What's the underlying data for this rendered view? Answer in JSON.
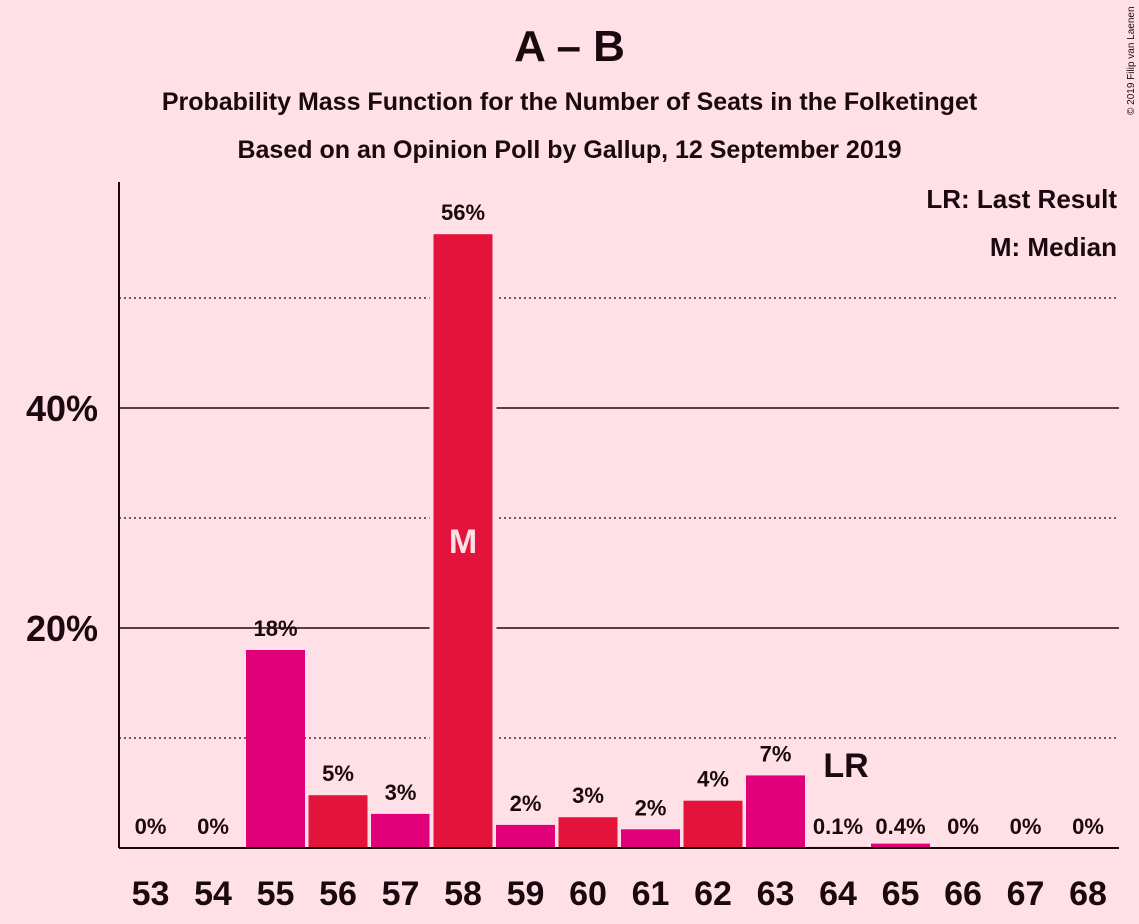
{
  "title": "A – B",
  "subtitle": "Probability Mass Function for the Number of Seats in the Folketinget",
  "subtitle2": "Based on an Opinion Poll by Gallup, 12 September 2019",
  "copyright": "© 2019 Filip van Laenen",
  "legend": {
    "last_result": "LR: Last Result",
    "median": "M: Median"
  },
  "colors": {
    "background": "#ffe0e6",
    "bar_magenta": "#e2007a",
    "bar_red": "#e3133b",
    "text": "#1a0a0f"
  },
  "chart_data": {
    "type": "bar",
    "categories": [
      "53",
      "54",
      "55",
      "56",
      "57",
      "58",
      "59",
      "60",
      "61",
      "62",
      "63",
      "64",
      "65",
      "66",
      "67",
      "68"
    ],
    "values": [
      0,
      0,
      18,
      4.8,
      3.1,
      55.8,
      2.1,
      2.8,
      1.7,
      4.3,
      6.6,
      0.1,
      0.4,
      0,
      0,
      0
    ],
    "labels": [
      "0%",
      "0%",
      "18%",
      "5%",
      "3%",
      "56%",
      "2%",
      "3%",
      "2%",
      "4%",
      "7%",
      "0.1%",
      "0.4%",
      "0%",
      "0%",
      "0%"
    ],
    "bar_colors": [
      "#e2007a",
      "#e3133b",
      "#e2007a",
      "#e3133b",
      "#e2007a",
      "#e3133b",
      "#e2007a",
      "#e3133b",
      "#e2007a",
      "#e3133b",
      "#e2007a",
      "#e3133b",
      "#e2007a",
      "#e3133b",
      "#e2007a",
      "#e3133b"
    ],
    "y_ticks": [
      {
        "value": 20,
        "label": "20%"
      },
      {
        "value": 40,
        "label": "40%"
      }
    ],
    "minor_gridlines": [
      10,
      30,
      50
    ],
    "ylim": [
      0,
      60
    ],
    "median": {
      "category": "58",
      "label": "M"
    },
    "last_result": {
      "category": "64",
      "label": "LR"
    }
  }
}
